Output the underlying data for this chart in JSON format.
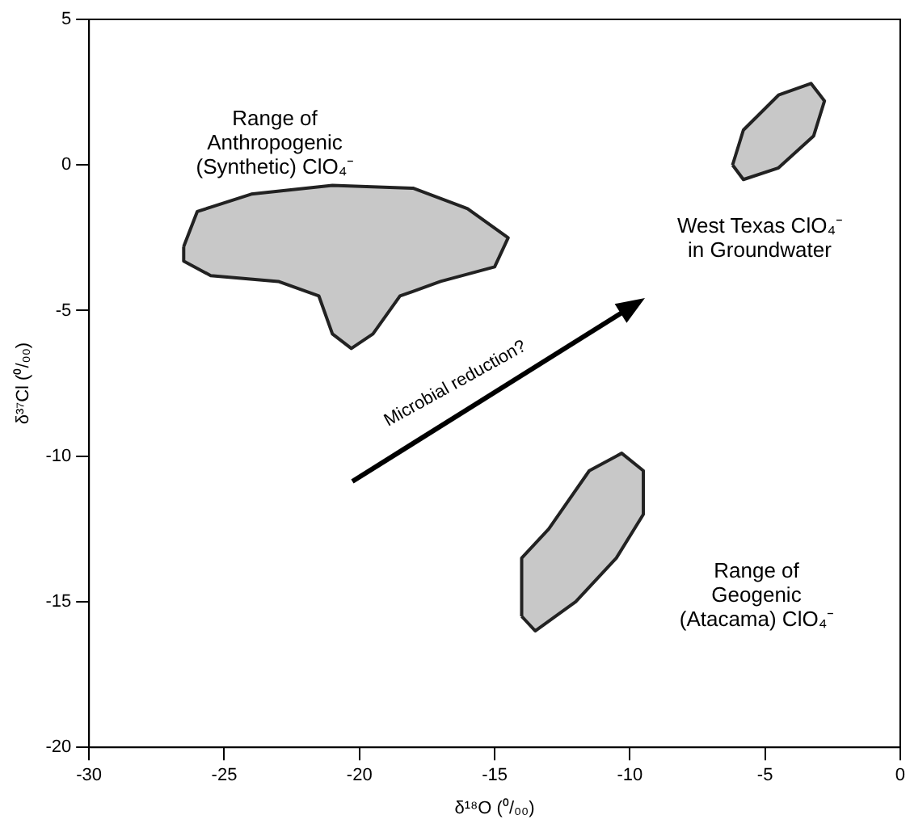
{
  "chart_data": {
    "type": "area",
    "xlabel": "δ¹⁸O (⁰/₀₀)",
    "ylabel": "δ³⁷Cl (⁰/₀₀)",
    "xlim": [
      -30,
      0
    ],
    "xticks": [
      -30,
      -25,
      -20,
      -15,
      -10,
      -5,
      0
    ],
    "ylim": [
      -20,
      5
    ],
    "yticks": [
      -20,
      -15,
      -10,
      -5,
      0,
      5
    ],
    "grid": false,
    "legend": false,
    "series": [
      {
        "color": "#222222",
        "x": [
          -26.5,
          -26,
          -24,
          -21,
          -18,
          -16,
          -14.5,
          -15,
          -17,
          -18.5,
          -19.5,
          -20.3,
          -21,
          -21.5,
          -23,
          -25.5,
          -26.5,
          -26.5
        ],
        "values": [
          -2.8,
          -1.6,
          -1,
          -0.7,
          -0.8,
          -1.5,
          -2.5,
          -3.5,
          -4,
          -4.5,
          -5.8,
          -6.3,
          -5.8,
          -4.5,
          -4,
          -3.8,
          -3.3,
          -2.8
        ]
      },
      {
        "color": "#222222",
        "x": [
          -6.2,
          -5.8,
          -4.5,
          -3.3,
          -2.8,
          -3.2,
          -4.5,
          -5.8,
          -6.2
        ],
        "values": [
          0,
          1.2,
          2.4,
          2.8,
          2.2,
          1,
          -0.1,
          -0.5,
          0
        ]
      },
      {
        "color": "#222222",
        "x": [
          -14,
          -14,
          -13,
          -11.5,
          -10.3,
          -9.5,
          -9.5,
          -10.5,
          -12,
          -13.5,
          -14
        ],
        "values": [
          -15.5,
          -13.5,
          -12.5,
          -10.5,
          -9.9,
          -10.5,
          -12,
          -13.5,
          -15,
          -16,
          -15.5
        ]
      }
    ],
    "annotations": [
      "Range of\nAnthropogenic\n(Synthetic) ClO₄⁻",
      "West Texas ClO₄⁻\nin Groundwater",
      "Range of\nGeogenic\n(Atacama) ClO₄⁻",
      "Microbial reduction?"
    ]
  }
}
